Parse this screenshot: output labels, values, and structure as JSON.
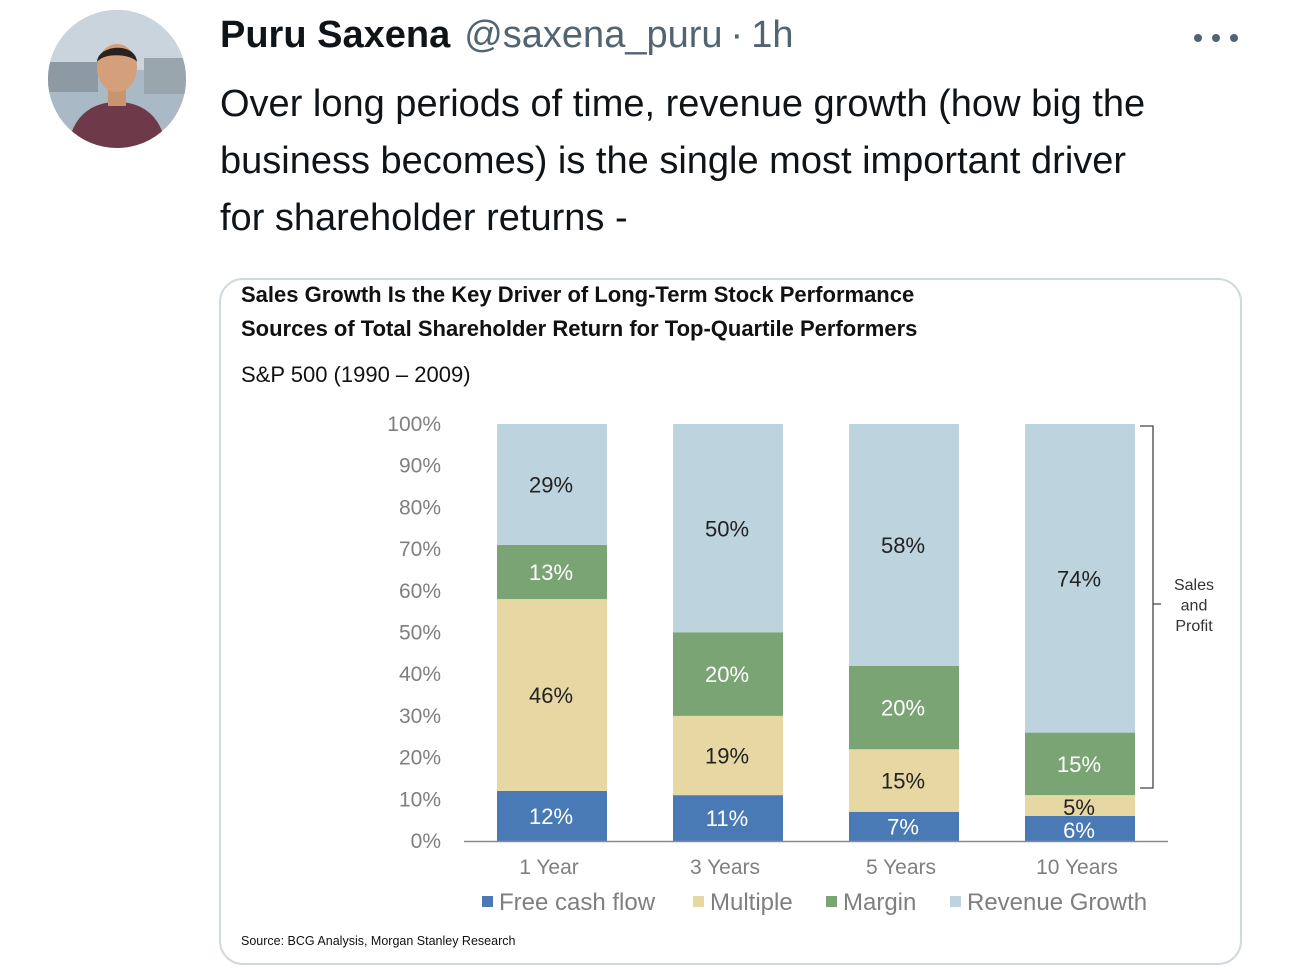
{
  "tweet": {
    "author_name": "Puru Saxena",
    "author_handle": "@saxena_puru",
    "separator": "·",
    "timestamp": "1h",
    "text": "Over long periods of time, revenue growth (how big the\nbusiness becomes) is the single most important driver\nfor shareholder returns -",
    "more_icon": "more-horizontal-icon"
  },
  "media": {
    "chart_title": "Sales Growth Is the Key Driver of Long-Term Stock Performance",
    "chart_subtitle": "Sources of Total Shareholder Return for Top-Quartile Performers",
    "index_label": "S&P 500 (1990 – 2009)",
    "source": "Source: BCG Analysis, Morgan Stanley Research"
  },
  "chart_data": {
    "type": "bar",
    "stacked": true,
    "title": "Sales Growth Is the Key Driver of Long-Term Stock Performance",
    "subtitle": "Sources of Total Shareholder Return for Top-Quartile Performers",
    "categories": [
      "1 Year",
      "3 Years",
      "5 Years",
      "10 Years"
    ],
    "series": [
      {
        "name": "Free cash flow",
        "color": "#4a7ab5",
        "text_color": "#ffffff",
        "values": [
          12,
          11,
          7,
          6
        ],
        "labels": [
          "12%",
          "11%",
          "7%",
          "6%"
        ]
      },
      {
        "name": "Multiple",
        "color": "#e6d7a3",
        "text_color": "#222222",
        "values": [
          46,
          19,
          15,
          5
        ],
        "labels": [
          "46%",
          "19%",
          "15%",
          "5%"
        ]
      },
      {
        "name": "Margin",
        "color": "#7ba474",
        "text_color": "#ffffff",
        "values": [
          13,
          20,
          20,
          15
        ],
        "labels": [
          "13%",
          "20%",
          "20%",
          "15%"
        ]
      },
      {
        "name": "Revenue Growth",
        "color": "#bdd3dd",
        "text_color": "#222222",
        "values": [
          29,
          50,
          58,
          74
        ],
        "labels": [
          "29%",
          "50%",
          "58%",
          "74%"
        ]
      }
    ],
    "yticks": [
      "0%",
      "10%",
      "20%",
      "30%",
      "40%",
      "50%",
      "60%",
      "70%",
      "80%",
      "90%",
      "100%"
    ],
    "ylim": [
      0,
      100
    ],
    "legend_position": "bottom",
    "grid": false,
    "annotation": "Sales and Profit"
  }
}
